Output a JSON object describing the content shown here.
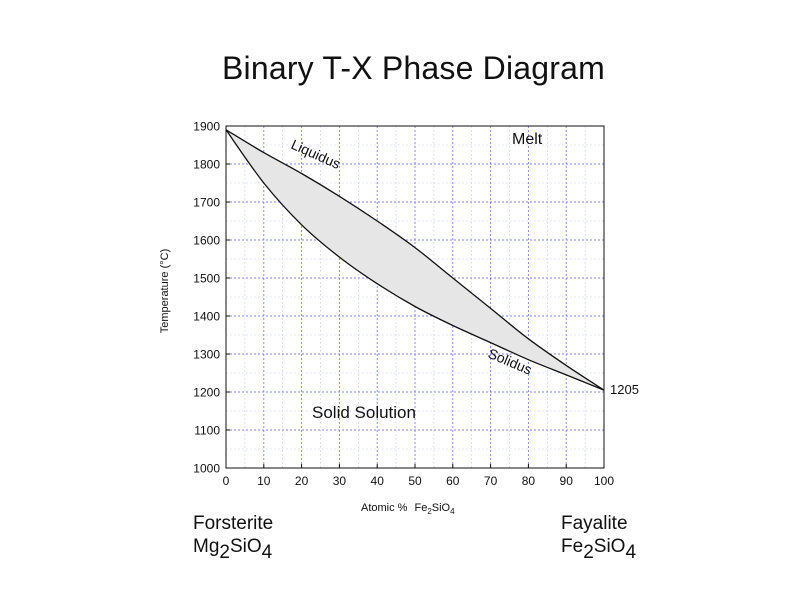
{
  "slide": {
    "title": "Binary T-X Phase Diagram"
  },
  "chart_data": {
    "type": "area",
    "title": "",
    "xlabel": "Atomic %",
    "xlabel_formula": {
      "a": "Fe",
      "n1": "2",
      "b": "SiO",
      "n2": "4"
    },
    "ylabel": "Temperature (°C)",
    "xlim": [
      0,
      100
    ],
    "ylim": [
      1000,
      1900
    ],
    "xticks": [
      0,
      10,
      20,
      30,
      40,
      50,
      60,
      70,
      80,
      90,
      100
    ],
    "yticks": [
      1000,
      1100,
      1200,
      1300,
      1400,
      1500,
      1600,
      1700,
      1800,
      1900
    ],
    "grid": {
      "major": true,
      "minor_x_step": 5,
      "minor_y_step": 50
    },
    "series": [
      {
        "name": "Liquidus",
        "x": [
          0,
          10,
          20,
          30,
          40,
          50,
          60,
          70,
          80,
          90,
          100
        ],
        "y": [
          1890,
          1830,
          1775,
          1715,
          1650,
          1580,
          1500,
          1420,
          1340,
          1270,
          1205
        ]
      },
      {
        "name": "Solidus",
        "x": [
          0,
          10,
          20,
          30,
          40,
          50,
          60,
          70,
          80,
          90,
          100
        ],
        "y": [
          1890,
          1750,
          1640,
          1555,
          1485,
          1425,
          1375,
          1330,
          1285,
          1245,
          1205
        ]
      }
    ],
    "annotations": {
      "melt": "Melt",
      "solid_solution": "Solid Solution",
      "liquidus": "Liquidus",
      "solidus": "Solidus",
      "fayalite_melting": "1205"
    },
    "colors": {
      "two_phase_fill": "#e6e6e6",
      "grid": "#7d83e8",
      "curve": "#111111"
    }
  },
  "endmembers": {
    "left": {
      "name": "Forsterite",
      "f1": "Mg",
      "n1": "2",
      "f2": "SiO",
      "n2": "4"
    },
    "right": {
      "name": "Fayalite",
      "f1": "Fe",
      "n1": "2",
      "f2": "SiO",
      "n2": "4"
    }
  }
}
